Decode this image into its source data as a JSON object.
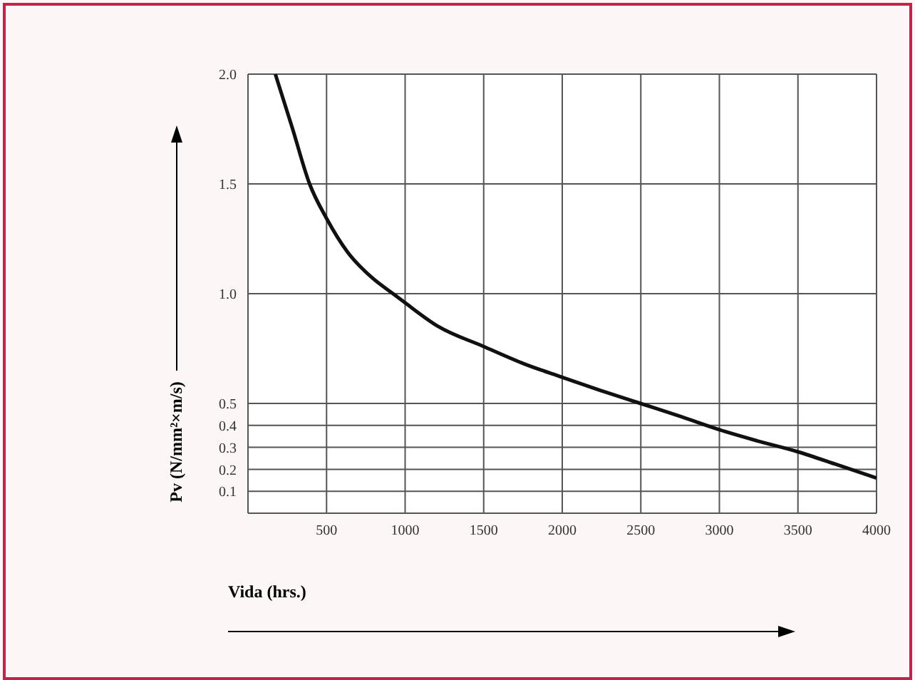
{
  "chart_data": {
    "type": "line",
    "xlabel": "Vida (hrs.)",
    "ylabel": "Pv (N/mm²×m/s)",
    "x": [
      174,
      280,
      392,
      502,
      633,
      794,
      923,
      997,
      1212,
      1498,
      1759,
      1997,
      2241,
      2498,
      2755,
      3000,
      3238,
      3498,
      3752,
      4000
    ],
    "series": [
      {
        "color": "#111111",
        "values": [
          2.0,
          1.76,
          1.5,
          1.34,
          1.19,
          1.07,
          1.0,
          0.96,
          0.85,
          0.76,
          0.68,
          0.62,
          0.56,
          0.5,
          0.44,
          0.38,
          0.33,
          0.28,
          0.22,
          0.16
        ]
      }
    ],
    "xlim": [
      0,
      4000
    ],
    "xticks": [
      500,
      1000,
      1500,
      2000,
      2500,
      3000,
      3500,
      4000
    ],
    "ylim": [
      0,
      2.0
    ],
    "yticks": [
      0.1,
      0.2,
      0.3,
      0.4,
      {
        "value": 0.5,
        "label": "0.5"
      },
      {
        "value": 1.0,
        "label": "1.0"
      },
      {
        "value": 1.5,
        "label": "1.5"
      },
      {
        "value": 2.0,
        "label": "2.0"
      }
    ],
    "grid": true,
    "marker": "none",
    "line_style": "solid",
    "legend": false
  }
}
